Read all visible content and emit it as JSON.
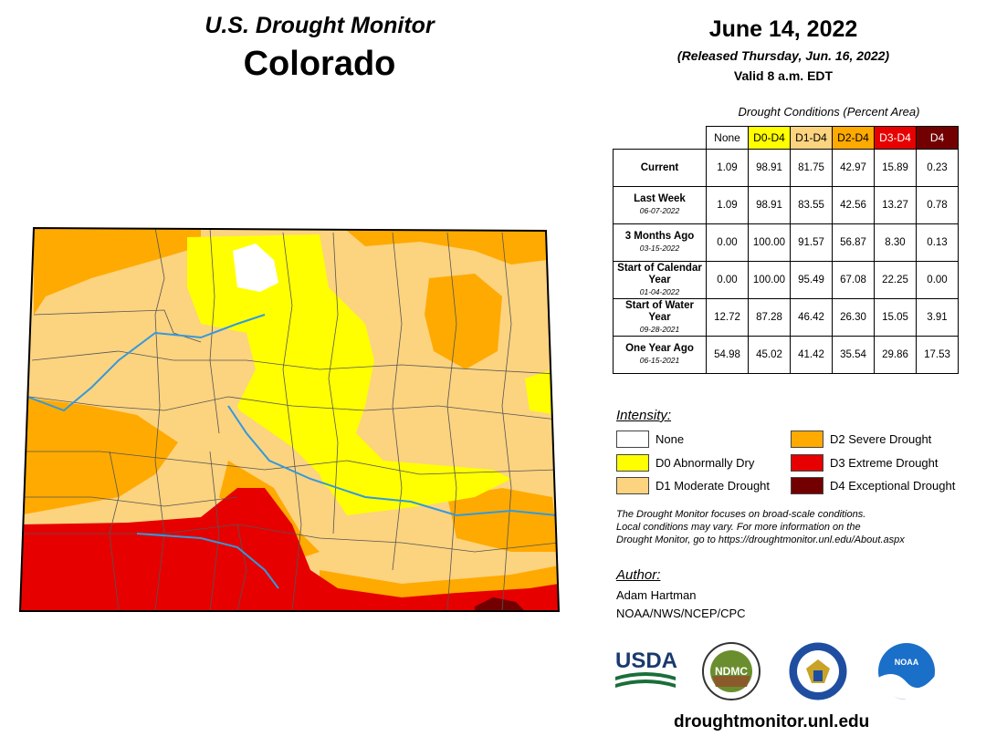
{
  "header": {
    "title": "U.S. Drought Monitor",
    "state": "Colorado",
    "date": "June 14, 2022",
    "released": "(Released Thursday, Jun. 16, 2022)",
    "valid": "Valid 8 a.m. EDT"
  },
  "table": {
    "caption": "Drought Conditions (Percent Area)",
    "columns": [
      {
        "label": "None",
        "color": "#ffffff",
        "text_color": "#000000"
      },
      {
        "label": "D0-D4",
        "color": "#ffff00",
        "text_color": "#000000"
      },
      {
        "label": "D1-D4",
        "color": "#fcd37f",
        "text_color": "#000000"
      },
      {
        "label": "D2-D4",
        "color": "#ffaa00",
        "text_color": "#000000"
      },
      {
        "label": "D3-D4",
        "color": "#e60000",
        "text_color": "#ffffff"
      },
      {
        "label": "D4",
        "color": "#730000",
        "text_color": "#ffffff"
      }
    ],
    "rows": [
      {
        "label": "Current",
        "sublabel": "",
        "values": [
          "1.09",
          "98.91",
          "81.75",
          "42.97",
          "15.89",
          "0.23"
        ]
      },
      {
        "label": "Last Week",
        "sublabel": "06-07-2022",
        "values": [
          "1.09",
          "98.91",
          "83.55",
          "42.56",
          "13.27",
          "0.78"
        ]
      },
      {
        "label": "3 Months Ago",
        "sublabel": "03-15-2022",
        "values": [
          "0.00",
          "100.00",
          "91.57",
          "56.87",
          "8.30",
          "0.13"
        ]
      },
      {
        "label": "Start of Calendar Year",
        "sublabel": "01-04-2022",
        "values": [
          "0.00",
          "100.00",
          "95.49",
          "67.08",
          "22.25",
          "0.00"
        ]
      },
      {
        "label": "Start of Water Year",
        "sublabel": "09-28-2021",
        "values": [
          "12.72",
          "87.28",
          "46.42",
          "26.30",
          "15.05",
          "3.91"
        ]
      },
      {
        "label": "One Year Ago",
        "sublabel": "06-15-2021",
        "values": [
          "54.98",
          "45.02",
          "41.42",
          "35.54",
          "29.86",
          "17.53"
        ]
      }
    ]
  },
  "legend": {
    "title": "Intensity:",
    "items": [
      {
        "label": "None",
        "color": "#ffffff"
      },
      {
        "label": "D0 Abnormally Dry",
        "color": "#ffff00"
      },
      {
        "label": "D1 Moderate Drought",
        "color": "#fcd37f"
      },
      {
        "label": "D2 Severe Drought",
        "color": "#ffaa00"
      },
      {
        "label": "D3 Extreme Drought",
        "color": "#e60000"
      },
      {
        "label": "D4 Exceptional Drought",
        "color": "#730000"
      }
    ]
  },
  "disclaimer": {
    "line1": "The Drought Monitor focuses on broad-scale conditions.",
    "line2": "Local conditions may vary. For more information on the",
    "line3": "Drought Monitor, go to https://droughtmonitor.unl.edu/About.aspx"
  },
  "author": {
    "title": "Author:",
    "name": "Adam Hartman",
    "org": "NOAA/NWS/NCEP/CPC"
  },
  "logos": {
    "usda": "USDA",
    "ndmc": "NDMC",
    "noaa": "NOAA",
    "commerce": "commerce-seal"
  },
  "footer_url": "droughtmonitor.unl.edu"
}
